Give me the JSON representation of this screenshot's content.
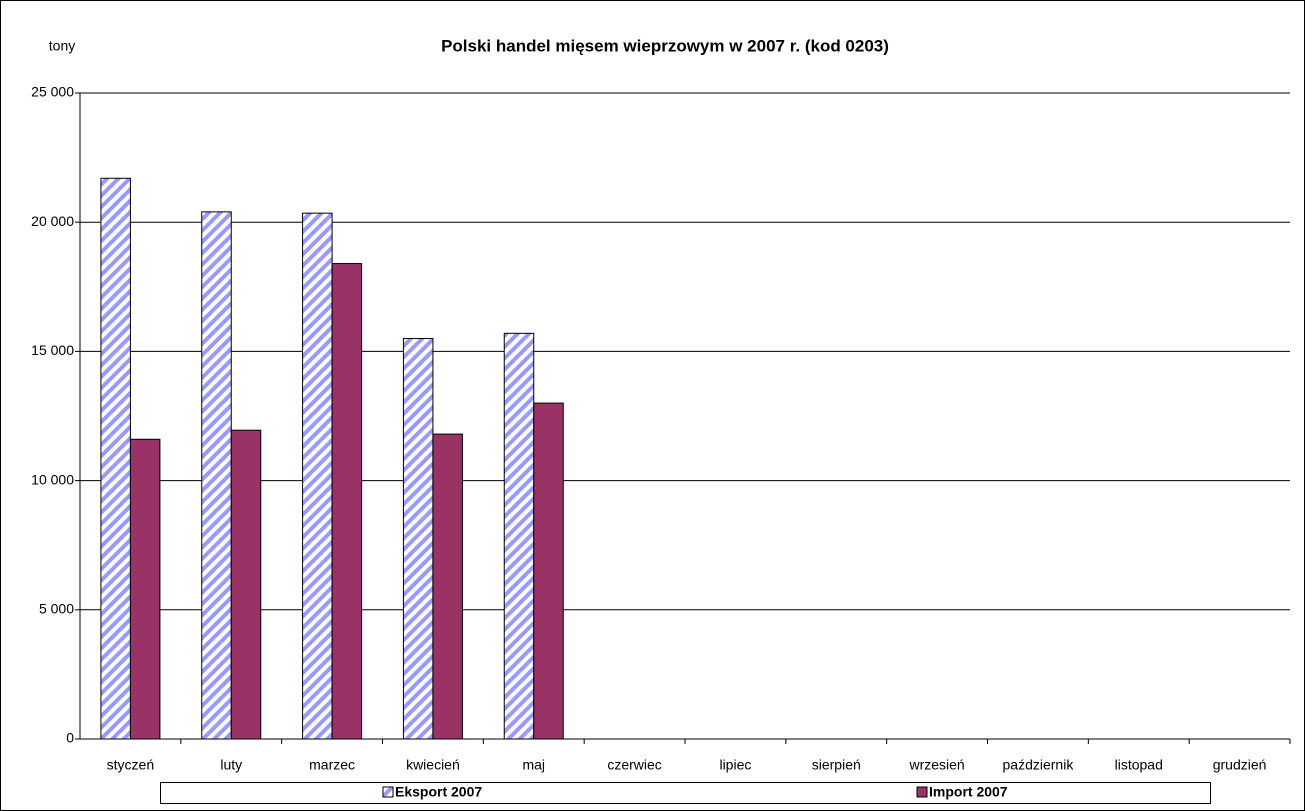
{
  "chart_data": {
    "type": "bar",
    "title": "Polski handel mięsem wieprzowym w 2007 r. (kod 0203)",
    "y_label": "tony",
    "categories": [
      "styczeń",
      "luty",
      "marzec",
      "kwiecień",
      "maj",
      "czerwiec",
      "lipiec",
      "sierpień",
      "wrzesień",
      "październik",
      "listopad",
      "grudzień"
    ],
    "series": [
      {
        "name": "Eksport 2007",
        "color": "#9999ff",
        "pattern": "diagonal-stripes",
        "values": [
          21700,
          20400,
          20350,
          15500,
          15700,
          null,
          null,
          null,
          null,
          null,
          null,
          null
        ]
      },
      {
        "name": "Import 2007",
        "color": "#993366",
        "values": [
          11600,
          11950,
          18400,
          11800,
          13000,
          null,
          null,
          null,
          null,
          null,
          null,
          null
        ]
      }
    ],
    "ylim": [
      0,
      25000
    ],
    "yticks": [
      0,
      {
        "value": 5000,
        "label": "5 000"
      },
      {
        "value": 10000,
        "label": "10 000"
      },
      {
        "value": 15000,
        "label": "15 000"
      },
      {
        "value": 20000,
        "label": "20 000"
      },
      {
        "value": 25000,
        "label": "25 000"
      }
    ],
    "grid": true,
    "legend": "bottom"
  }
}
